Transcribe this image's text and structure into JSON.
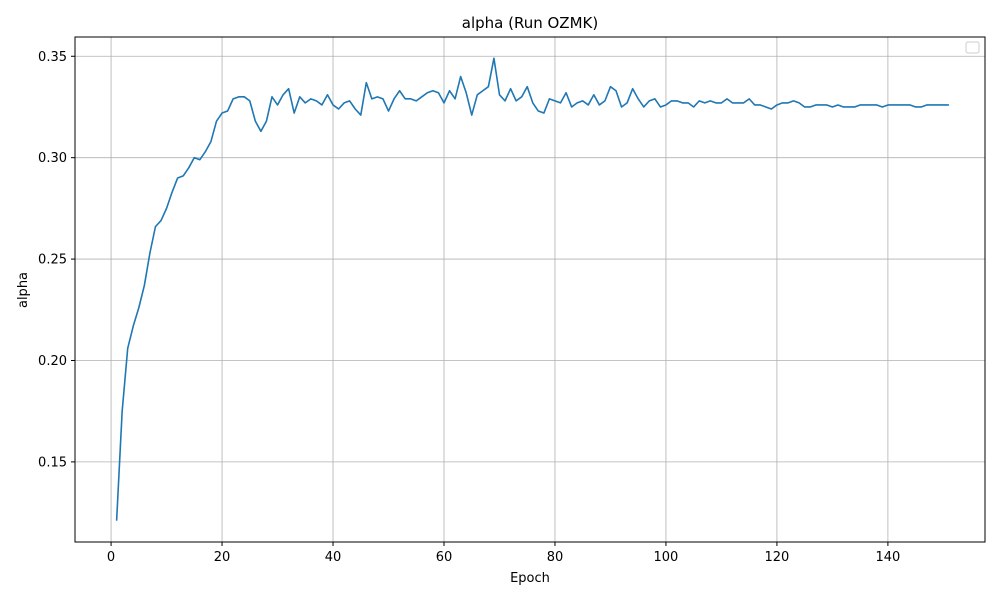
{
  "chart_data": {
    "type": "line",
    "title": "alpha (Run OZMK)",
    "xlabel": "Epoch",
    "ylabel": "alpha",
    "xlim": [
      -6.5,
      157.5
    ],
    "ylim": [
      0.1105,
      0.3595
    ],
    "xticks": [
      0,
      20,
      40,
      60,
      80,
      100,
      120,
      140
    ],
    "yticks": [
      0.15,
      0.2,
      0.25,
      0.3,
      0.35
    ],
    "ytick_labels": [
      "0.15",
      "0.20",
      "0.25",
      "0.30",
      "0.35"
    ],
    "grid": true,
    "legend": "top-right",
    "series": [
      {
        "color": "#1f77b4",
        "x": [
          1,
          2,
          3,
          4,
          5,
          6,
          7,
          8,
          9,
          10,
          11,
          12,
          13,
          14,
          15,
          16,
          17,
          18,
          19,
          20,
          21,
          22,
          23,
          24,
          25,
          26,
          27,
          28,
          29,
          30,
          31,
          32,
          33,
          34,
          35,
          36,
          37,
          38,
          39,
          40,
          41,
          42,
          43,
          44,
          45,
          46,
          47,
          48,
          49,
          50,
          51,
          52,
          53,
          54,
          55,
          56,
          57,
          58,
          59,
          60,
          61,
          62,
          63,
          64,
          65,
          66,
          67,
          68,
          69,
          70,
          71,
          72,
          73,
          74,
          75,
          76,
          77,
          78,
          79,
          80,
          81,
          82,
          83,
          84,
          85,
          86,
          87,
          88,
          89,
          90,
          91,
          92,
          93,
          94,
          95,
          96,
          97,
          98,
          99,
          100,
          101,
          102,
          103,
          104,
          105,
          106,
          107,
          108,
          109,
          110,
          111,
          112,
          113,
          114,
          115,
          116,
          117,
          118,
          119,
          120,
          121,
          122,
          123,
          124,
          125,
          126,
          127,
          128,
          129,
          130,
          131,
          132,
          133,
          134,
          135,
          136,
          137,
          138,
          139,
          140,
          141,
          142,
          143,
          144,
          145,
          146,
          147,
          148,
          149,
          150,
          151
        ],
        "values": [
          0.121,
          0.175,
          0.206,
          0.217,
          0.226,
          0.237,
          0.253,
          0.266,
          0.269,
          0.275,
          0.283,
          0.29,
          0.291,
          0.295,
          0.3,
          0.299,
          0.303,
          0.308,
          0.318,
          0.322,
          0.323,
          0.329,
          0.33,
          0.33,
          0.328,
          0.318,
          0.313,
          0.318,
          0.33,
          0.326,
          0.331,
          0.334,
          0.322,
          0.33,
          0.327,
          0.329,
          0.328,
          0.326,
          0.331,
          0.326,
          0.324,
          0.327,
          0.328,
          0.324,
          0.321,
          0.337,
          0.329,
          0.33,
          0.329,
          0.323,
          0.329,
          0.333,
          0.329,
          0.329,
          0.328,
          0.33,
          0.332,
          0.333,
          0.332,
          0.327,
          0.333,
          0.329,
          0.34,
          0.332,
          0.321,
          0.331,
          0.333,
          0.335,
          0.349,
          0.331,
          0.328,
          0.334,
          0.328,
          0.33,
          0.335,
          0.327,
          0.323,
          0.322,
          0.329,
          0.328,
          0.327,
          0.332,
          0.325,
          0.327,
          0.328,
          0.326,
          0.331,
          0.326,
          0.328,
          0.335,
          0.333,
          0.325,
          0.327,
          0.334,
          0.329,
          0.325,
          0.328,
          0.329,
          0.325,
          0.326,
          0.328,
          0.328,
          0.327,
          0.327,
          0.325,
          0.328,
          0.327,
          0.328,
          0.327,
          0.327,
          0.329,
          0.327,
          0.327,
          0.327,
          0.329,
          0.326,
          0.326,
          0.325,
          0.324,
          0.326,
          0.327,
          0.327,
          0.328,
          0.327,
          0.325,
          0.325,
          0.326,
          0.326,
          0.326,
          0.325,
          0.326,
          0.325,
          0.325,
          0.325,
          0.326,
          0.326,
          0.326,
          0.326,
          0.325,
          0.326,
          0.326,
          0.326,
          0.326,
          0.326,
          0.325,
          0.325,
          0.326,
          0.326,
          0.326,
          0.326,
          0.326
        ]
      }
    ]
  }
}
